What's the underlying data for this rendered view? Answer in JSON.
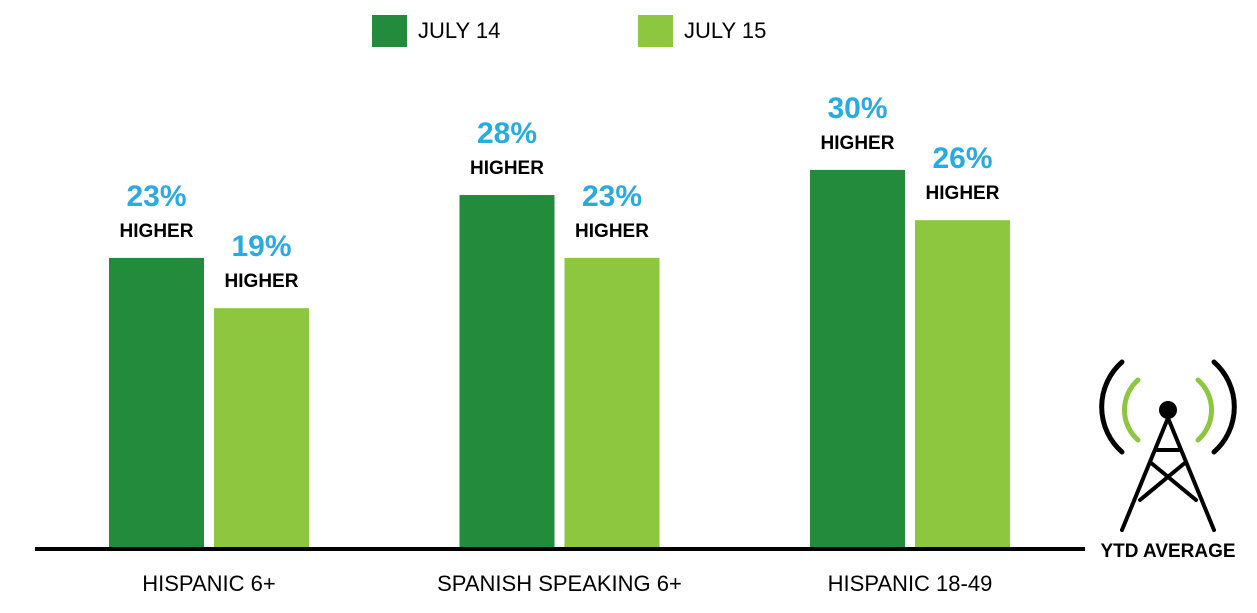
{
  "chart_data": {
    "type": "bar",
    "categories": [
      "HISPANIC 6+",
      "SPANISH SPEAKING 6+",
      "HISPANIC 18-49"
    ],
    "series": [
      {
        "name": "JULY 14",
        "color": "#228b3c",
        "values": [
          23,
          28,
          30
        ],
        "value_labels": [
          "23%",
          "28%",
          "30%"
        ]
      },
      {
        "name": "JULY 15",
        "color": "#8dc63f",
        "values": [
          19,
          23,
          26
        ],
        "value_labels": [
          "19%",
          "23%",
          "26%"
        ]
      }
    ],
    "value_label_note": "HIGHER",
    "annotation": "YTD AVERAGE"
  }
}
